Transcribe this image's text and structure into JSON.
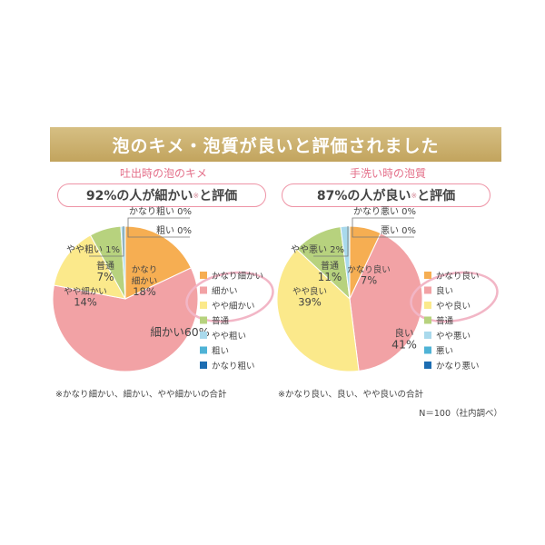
{
  "banner": {
    "title": "泡のキメ・泡質が良いと評価されました"
  },
  "note": "N＝100（社内調べ）",
  "colors": {
    "c1": "#f6ae52",
    "c2": "#f2a2a5",
    "c3": "#fbe98b",
    "c4": "#b7d27e",
    "c5": "#a9d9ec",
    "c6": "#4fb3d6",
    "c7": "#1c6db2",
    "accent": "#e4708a",
    "border": "#ee94a6",
    "banner": "#c9ad6a"
  },
  "chart_data": [
    {
      "type": "pie",
      "subtitle": "吐出時の泡のキメ",
      "headline_main": "92%の人が細かい",
      "headline_mark": "※",
      "headline_tail": "と評価",
      "footnote": "※かなり細かい、細かい、やや細かいの合計",
      "slices": [
        {
          "label": "かなり細かい",
          "value": 18,
          "display": "18%",
          "color_key": "c1"
        },
        {
          "label": "細かい",
          "value": 60,
          "display": "60%",
          "color_key": "c2"
        },
        {
          "label": "やや細かい",
          "value": 14,
          "display": "14%",
          "color_key": "c3"
        },
        {
          "label": "普通",
          "value": 7,
          "display": "7%",
          "color_key": "c4"
        },
        {
          "label": "やや粗い",
          "value": 1,
          "display": "1%",
          "color_key": "c5"
        },
        {
          "label": "粗い",
          "value": 0,
          "display": "0%",
          "color_key": "c6"
        },
        {
          "label": "かなり粗い",
          "value": 0,
          "display": "0%",
          "color_key": "c7"
        }
      ],
      "slice_text": [
        {
          "lines": [
            "かなり",
            "細かい",
            "18%"
          ]
        },
        {
          "lines": [
            "細かい60%"
          ]
        },
        {
          "lines": [
            "やや細かい",
            "14%"
          ]
        },
        {
          "lines": [
            "普通",
            "7%"
          ]
        }
      ],
      "callouts": [
        "かなり粗い 0%",
        "粗い 0%",
        "やや粗い 1%"
      ],
      "legend": [
        "かなり細かい",
        "細かい",
        "やや細かい",
        "普通",
        "やや粗い",
        "粗い",
        "かなり粗い"
      ]
    },
    {
      "type": "pie",
      "subtitle": "手洗い時の泡質",
      "headline_main": "87%の人が良い",
      "headline_mark": "※",
      "headline_tail": "と評価",
      "footnote": "※かなり良い、良い、やや良いの合計",
      "slices": [
        {
          "label": "かなり良い",
          "value": 7,
          "display": "7%",
          "color_key": "c1"
        },
        {
          "label": "良い",
          "value": 41,
          "display": "41%",
          "color_key": "c2"
        },
        {
          "label": "やや良い",
          "value": 39,
          "display": "39%",
          "color_key": "c3"
        },
        {
          "label": "普通",
          "value": 11,
          "display": "11%",
          "color_key": "c4"
        },
        {
          "label": "やや悪い",
          "value": 2,
          "display": "2%",
          "color_key": "c5"
        },
        {
          "label": "悪い",
          "value": 0,
          "display": "0%",
          "color_key": "c6"
        },
        {
          "label": "かなり悪い",
          "value": 0,
          "display": "0%",
          "color_key": "c7"
        }
      ],
      "slice_text": [
        {
          "lines": [
            "かなり良い",
            "7%"
          ]
        },
        {
          "lines": [
            "良い",
            "41%"
          ]
        },
        {
          "lines": [
            "やや良い",
            "39%"
          ]
        },
        {
          "lines": [
            "普通",
            "11%"
          ]
        }
      ],
      "callouts": [
        "かなり悪い 0%",
        "悪い 0%",
        "やや悪い 2%"
      ],
      "legend": [
        "かなり良い",
        "良い",
        "やや良い",
        "普通",
        "やや悪い",
        "悪い",
        "かなり悪い"
      ]
    }
  ]
}
